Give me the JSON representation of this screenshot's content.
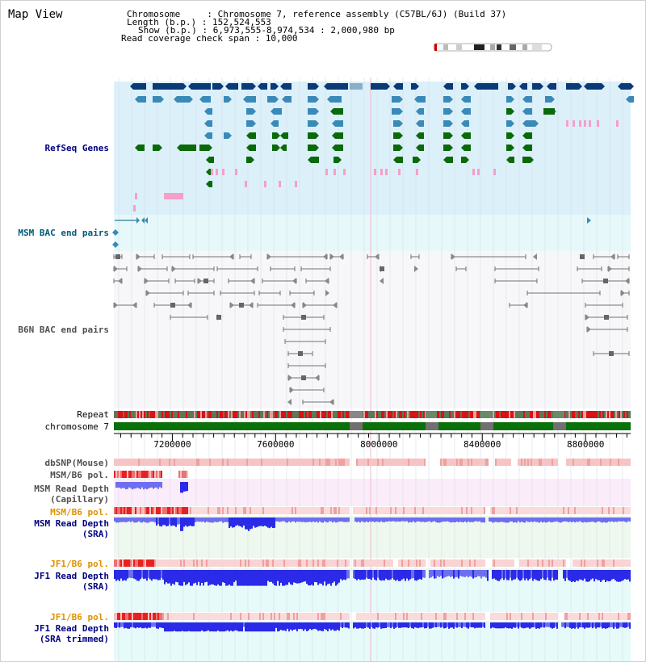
{
  "page": {
    "title": "Map View"
  },
  "info": {
    "chromosome_line": "Chromosome     : Chromosome 7, reference assembly (C57BL/6J) (Build 37)",
    "length_line": "Length (b.p.) : 152,524,553",
    "show_line": "Show (b.p.) : 6,973,555-8,974,534 : 2,000,980 bp",
    "coverage_line": "Read coverage check span : 10,000"
  },
  "tracks": {
    "refseq": "RefSeq Genes",
    "msm_bac": "MSM BAC end pairs",
    "b6n_bac": "B6N BAC end pairs",
    "repeat": "Repeat",
    "chromosome": "chromosome 7",
    "dbsnp": "dbSNP(Mouse)",
    "msm_b6_pol_1": "MSM/B6 pol.",
    "msm_read_depth_cap_1": "MSM Read Depth",
    "msm_read_depth_cap_2": "(Capillary)",
    "msm_b6_pol_2": "MSM/B6 pol.",
    "msm_read_depth_sra_1": "MSM Read Depth",
    "msm_read_depth_sra_2": "(SRA)",
    "jf1_b6_pol_1": "JF1/B6 pol.",
    "jf1_read_depth_sra_1": "JF1 Read Depth",
    "jf1_read_depth_sra_2": "(SRA)",
    "jf1_b6_pol_2": "JF1/B6 pol.",
    "jf1_read_depth_trim_1": "JF1 Read Depth",
    "jf1_read_depth_trim_2": "(SRA trimmed)"
  },
  "axis": {
    "start": 6973555,
    "end": 8974534,
    "ticks": [
      "7200000",
      "7600000",
      "8000000",
      "8400000",
      "8800000"
    ]
  },
  "colors": {
    "gene_dark": "#0a3a78",
    "gene_mid": "#3a8ab8",
    "gene_green": "#0a6a0a",
    "gene_pink": "#f4a0c8",
    "refseq_bg": "#dcf0fa",
    "msm_bg": "#e6f8fa",
    "b6n_bg": "#f6f6f8",
    "chrom_green": "#0a700a",
    "depth_blue": "#6e6ef0",
    "depth_deep": "#2a2ae8"
  }
}
